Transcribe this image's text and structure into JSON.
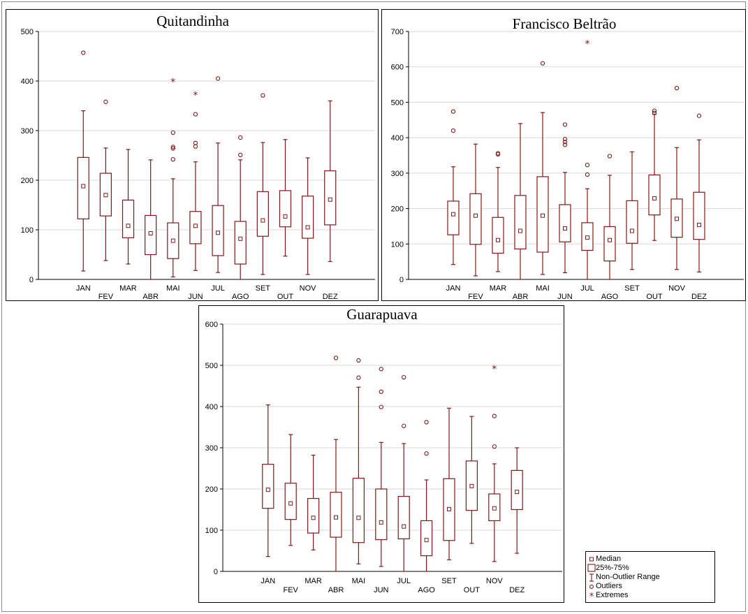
{
  "style": {
    "box_color": "#7a1a1a",
    "grid_color": "#d9d9d9"
  },
  "chart_data": [
    {
      "type": "box",
      "title": "Quitandinha",
      "ylim": [
        0,
        500
      ],
      "yticks": [
        0,
        100,
        200,
        300,
        400,
        500
      ],
      "categories": [
        "JAN",
        "FEV",
        "MAR",
        "ABR",
        "MAI",
        "JUN",
        "JUL",
        "AGO",
        "SET",
        "OUT",
        "NOV",
        "DEZ"
      ],
      "boxes": [
        {
          "category": "JAN",
          "whisker_low": 17,
          "q1": 122,
          "median": 188,
          "q3": 246,
          "whisker_high": 340,
          "outliers": [
            457
          ],
          "extremes": []
        },
        {
          "category": "FEV",
          "whisker_low": 38,
          "q1": 128,
          "median": 170,
          "q3": 214,
          "whisker_high": 265,
          "outliers": [
            358
          ],
          "extremes": []
        },
        {
          "category": "MAR",
          "whisker_low": 31,
          "q1": 84,
          "median": 108,
          "q3": 160,
          "whisker_high": 262,
          "outliers": [],
          "extremes": []
        },
        {
          "category": "ABR",
          "whisker_low": 0,
          "q1": 50,
          "median": 93,
          "q3": 129,
          "whisker_high": 241,
          "outliers": [],
          "extremes": []
        },
        {
          "category": "MAI",
          "whisker_low": 5,
          "q1": 42,
          "median": 78,
          "q3": 114,
          "whisker_high": 203,
          "outliers": [
            242,
            264,
            267,
            296
          ],
          "extremes": [
            400
          ]
        },
        {
          "category": "JUN",
          "whisker_low": 18,
          "q1": 72,
          "median": 108,
          "q3": 137,
          "whisker_high": 237,
          "outliers": [
            268,
            275,
            333
          ],
          "extremes": [
            373
          ]
        },
        {
          "category": "JUL",
          "whisker_low": 14,
          "q1": 48,
          "median": 94,
          "q3": 149,
          "whisker_high": 275,
          "outliers": [
            405
          ],
          "extremes": []
        },
        {
          "category": "AGO",
          "whisker_low": 0,
          "q1": 31,
          "median": 82,
          "q3": 117,
          "whisker_high": 241,
          "outliers": [
            251,
            286
          ],
          "extremes": []
        },
        {
          "category": "SET",
          "whisker_low": 10,
          "q1": 87,
          "median": 119,
          "q3": 177,
          "whisker_high": 276,
          "outliers": [
            371
          ],
          "extremes": []
        },
        {
          "category": "OUT",
          "whisker_low": 47,
          "q1": 106,
          "median": 127,
          "q3": 179,
          "whisker_high": 282,
          "outliers": [],
          "extremes": []
        },
        {
          "category": "NOV",
          "whisker_low": 10,
          "q1": 83,
          "median": 105,
          "q3": 168,
          "whisker_high": 245,
          "outliers": [],
          "extremes": []
        },
        {
          "category": "DEZ",
          "whisker_low": 36,
          "q1": 110,
          "median": 161,
          "q3": 219,
          "whisker_high": 360,
          "outliers": [],
          "extremes": []
        }
      ]
    },
    {
      "type": "box",
      "title": "Francisco Beltrão",
      "ylim": [
        0,
        700
      ],
      "yticks": [
        0,
        100,
        200,
        300,
        400,
        500,
        600,
        700
      ],
      "categories": [
        "JAN",
        "FEV",
        "MAR",
        "ABR",
        "MAI",
        "JUN",
        "JUL",
        "AGO",
        "SET",
        "OUT",
        "NOV",
        "DEZ"
      ],
      "boxes": [
        {
          "category": "JAN",
          "whisker_low": 42,
          "q1": 126,
          "median": 184,
          "q3": 221,
          "whisker_high": 318,
          "outliers": [
            420,
            474
          ],
          "extremes": []
        },
        {
          "category": "FEV",
          "whisker_low": 10,
          "q1": 99,
          "median": 180,
          "q3": 242,
          "whisker_high": 382,
          "outliers": [],
          "extremes": []
        },
        {
          "category": "MAR",
          "whisker_low": 22,
          "q1": 74,
          "median": 111,
          "q3": 175,
          "whisker_high": 316,
          "outliers": [
            353,
            356
          ],
          "extremes": []
        },
        {
          "category": "ABR",
          "whisker_low": 0,
          "q1": 86,
          "median": 137,
          "q3": 237,
          "whisker_high": 440,
          "outliers": [],
          "extremes": []
        },
        {
          "category": "MAI",
          "whisker_low": 14,
          "q1": 77,
          "median": 180,
          "q3": 290,
          "whisker_high": 471,
          "outliers": [
            610
          ],
          "extremes": []
        },
        {
          "category": "JUN",
          "whisker_low": 19,
          "q1": 106,
          "median": 144,
          "q3": 211,
          "whisker_high": 302,
          "outliers": [
            380,
            388,
            396,
            437
          ],
          "extremes": []
        },
        {
          "category": "JUL",
          "whisker_low": 0,
          "q1": 82,
          "median": 118,
          "q3": 160,
          "whisker_high": 256,
          "outliers": [
            296,
            323
          ],
          "extremes": [
            667
          ]
        },
        {
          "category": "AGO",
          "whisker_low": 0,
          "q1": 52,
          "median": 111,
          "q3": 149,
          "whisker_high": 294,
          "outliers": [
            348
          ],
          "extremes": []
        },
        {
          "category": "SET",
          "whisker_low": 28,
          "q1": 102,
          "median": 137,
          "q3": 222,
          "whisker_high": 360,
          "outliers": [],
          "extremes": []
        },
        {
          "category": "OUT",
          "whisker_low": 110,
          "q1": 182,
          "median": 229,
          "q3": 295,
          "whisker_high": 466,
          "outliers": [
            470,
            476
          ],
          "extremes": []
        },
        {
          "category": "NOV",
          "whisker_low": 28,
          "q1": 119,
          "median": 171,
          "q3": 227,
          "whisker_high": 372,
          "outliers": [
            540
          ],
          "extremes": []
        },
        {
          "category": "DEZ",
          "whisker_low": 21,
          "q1": 113,
          "median": 154,
          "q3": 246,
          "whisker_high": 394,
          "outliers": [
            462
          ],
          "extremes": []
        }
      ]
    },
    {
      "type": "box",
      "title": "Guarapuava",
      "ylim": [
        0,
        600
      ],
      "yticks": [
        0,
        100,
        200,
        300,
        400,
        500,
        600
      ],
      "categories": [
        "JAN",
        "FEV",
        "MAR",
        "ABR",
        "MAI",
        "JUN",
        "JUL",
        "AGO",
        "SET",
        "OUT",
        "NOV",
        "DEZ"
      ],
      "boxes": [
        {
          "category": "JAN",
          "whisker_low": 36,
          "q1": 153,
          "median": 198,
          "q3": 260,
          "whisker_high": 404,
          "outliers": [],
          "extremes": []
        },
        {
          "category": "FEV",
          "whisker_low": 63,
          "q1": 126,
          "median": 165,
          "q3": 214,
          "whisker_high": 332,
          "outliers": [],
          "extremes": []
        },
        {
          "category": "MAR",
          "whisker_low": 52,
          "q1": 93,
          "median": 130,
          "q3": 177,
          "whisker_high": 282,
          "outliers": [],
          "extremes": []
        },
        {
          "category": "ABR",
          "whisker_low": 0,
          "q1": 83,
          "median": 131,
          "q3": 192,
          "whisker_high": 320,
          "outliers": [
            518
          ],
          "extremes": []
        },
        {
          "category": "MAI",
          "whisker_low": 18,
          "q1": 70,
          "median": 130,
          "q3": 226,
          "whisker_high": 447,
          "outliers": [
            470,
            512
          ],
          "extremes": []
        },
        {
          "category": "JUN",
          "whisker_low": 12,
          "q1": 77,
          "median": 119,
          "q3": 200,
          "whisker_high": 313,
          "outliers": [
            399,
            436,
            491
          ],
          "extremes": []
        },
        {
          "category": "JUL",
          "whisker_low": 0,
          "q1": 79,
          "median": 109,
          "q3": 182,
          "whisker_high": 310,
          "outliers": [
            353,
            471
          ],
          "extremes": []
        },
        {
          "category": "AGO",
          "whisker_low": 0,
          "q1": 38,
          "median": 76,
          "q3": 123,
          "whisker_high": 222,
          "outliers": [
            286,
            362
          ],
          "extremes": []
        },
        {
          "category": "SET",
          "whisker_low": 28,
          "q1": 75,
          "median": 151,
          "q3": 225,
          "whisker_high": 396,
          "outliers": [],
          "extremes": []
        },
        {
          "category": "OUT",
          "whisker_low": 68,
          "q1": 148,
          "median": 207,
          "q3": 268,
          "whisker_high": 376,
          "outliers": [],
          "extremes": []
        },
        {
          "category": "NOV",
          "whisker_low": 24,
          "q1": 123,
          "median": 153,
          "q3": 188,
          "whisker_high": 261,
          "outliers": [
            303,
            377
          ],
          "extremes": [
            493
          ]
        },
        {
          "category": "DEZ",
          "whisker_low": 44,
          "q1": 150,
          "median": 193,
          "q3": 245,
          "whisker_high": 300,
          "outliers": [],
          "extremes": []
        }
      ]
    }
  ],
  "legend": {
    "items": [
      {
        "symbol": "median",
        "label": "Median"
      },
      {
        "symbol": "box",
        "label": "25%-75%"
      },
      {
        "symbol": "range",
        "label": "Non-Outlier Range"
      },
      {
        "symbol": "outlier",
        "label": "Outliers"
      },
      {
        "symbol": "extreme",
        "label": "Extremes"
      }
    ]
  }
}
